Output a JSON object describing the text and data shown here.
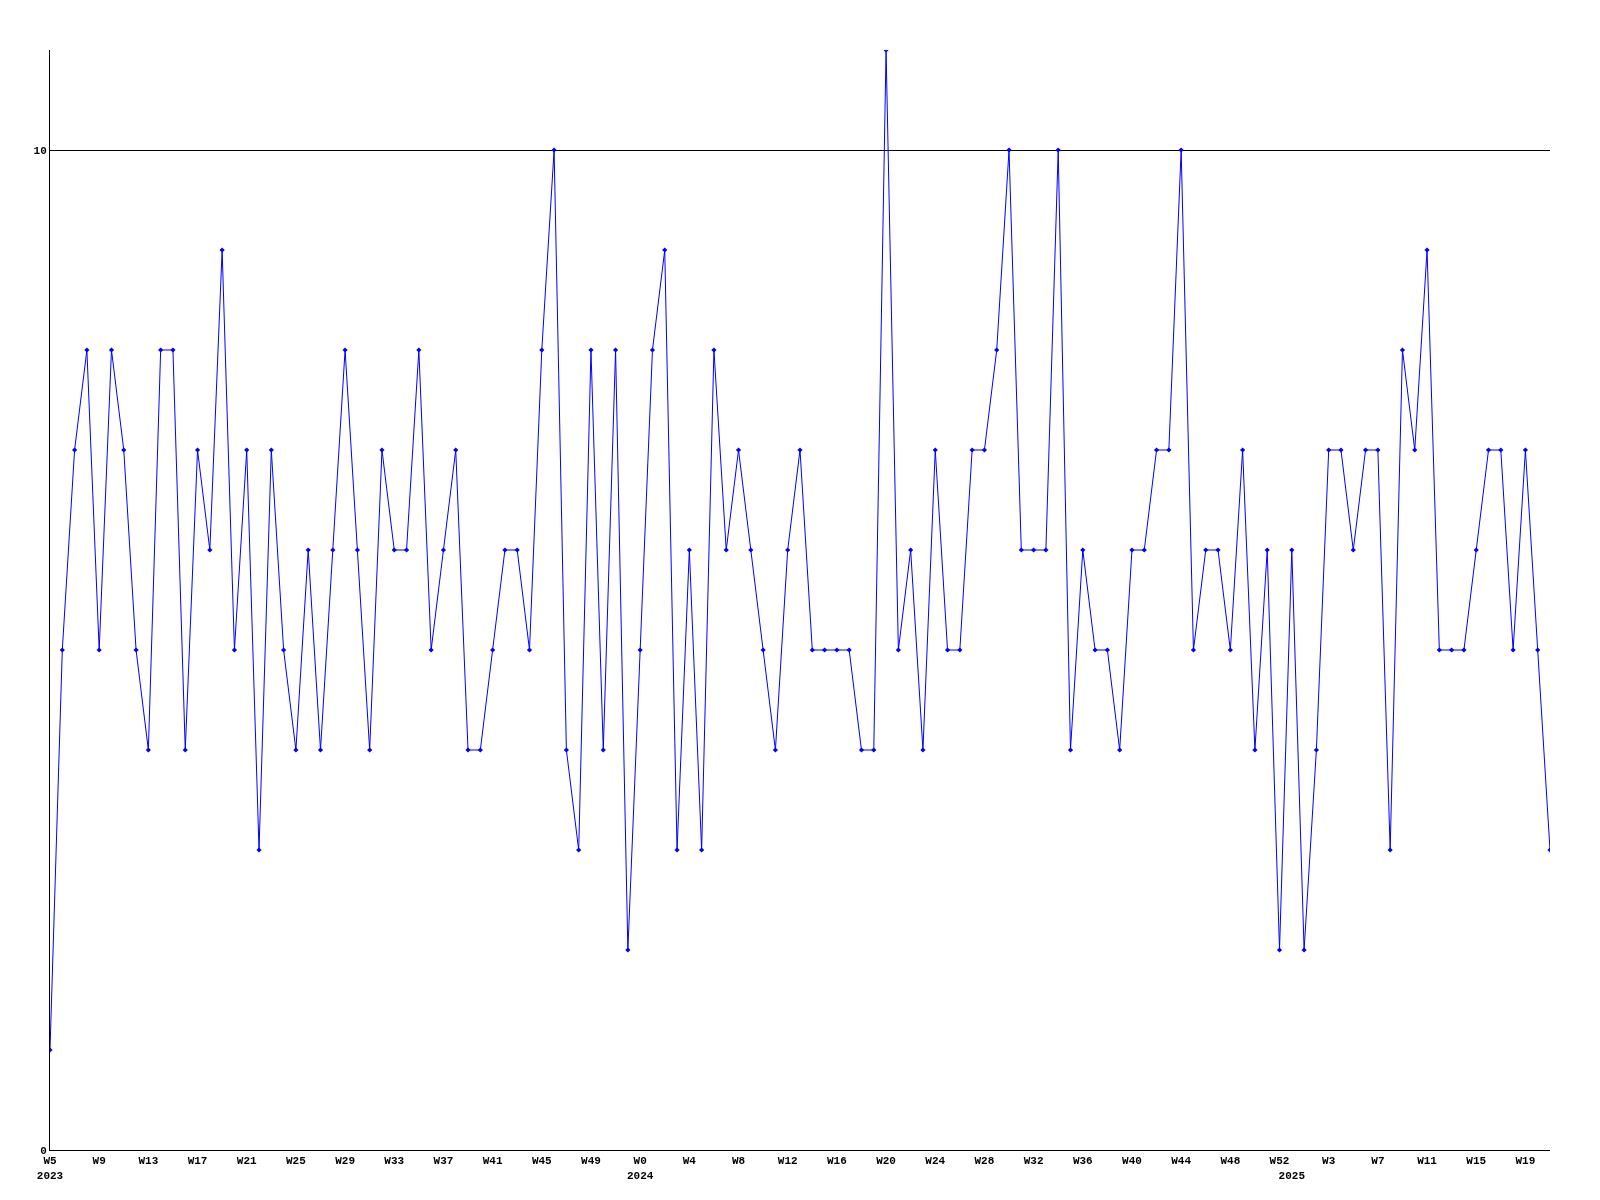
{
  "chart_data": {
    "type": "line",
    "categories": [
      "W5\n2023",
      null,
      null,
      null,
      "W9",
      null,
      null,
      null,
      "W13",
      null,
      null,
      null,
      "W17",
      null,
      null,
      null,
      "W21",
      null,
      null,
      null,
      "W25",
      null,
      null,
      null,
      "W29",
      null,
      null,
      null,
      "W33",
      null,
      null,
      null,
      "W37",
      null,
      null,
      null,
      "W41",
      null,
      null,
      null,
      "W45",
      null,
      null,
      null,
      "W49",
      null,
      null,
      null,
      "W0\n2024",
      null,
      null,
      null,
      "W4",
      null,
      null,
      null,
      "W8",
      null,
      null,
      null,
      "W12",
      null,
      null,
      null,
      "W16",
      null,
      null,
      null,
      "W20",
      null,
      null,
      null,
      "W24",
      null,
      null,
      null,
      "W28",
      null,
      null,
      null,
      "W32",
      null,
      null,
      null,
      "W36",
      null,
      null,
      null,
      "W40",
      null,
      null,
      null,
      "W44",
      null,
      null,
      null,
      "W48",
      null,
      null,
      null,
      "W52",
      "\n2025",
      null,
      null,
      "W3",
      null,
      null,
      null,
      "W7",
      null,
      null,
      null,
      "W11",
      null,
      null,
      null,
      "W15",
      null,
      null,
      null,
      "W19",
      null,
      null
    ],
    "series": [
      {
        "color": "#0000ff",
        "values": [
          1,
          5,
          7,
          8,
          5,
          8,
          7,
          5,
          4,
          8,
          8,
          4,
          7,
          6,
          9,
          5,
          7,
          3,
          7,
          5,
          4,
          6,
          4,
          6,
          8,
          6,
          4,
          7,
          6,
          6,
          8,
          5,
          6,
          7,
          4,
          4,
          5,
          6,
          6,
          5,
          8,
          10,
          4,
          3,
          8,
          4,
          8,
          2,
          5,
          8,
          9,
          3,
          6,
          3,
          8,
          6,
          7,
          6,
          5,
          4,
          6,
          7,
          5,
          5,
          5,
          5,
          4,
          4,
          11,
          5,
          6,
          4,
          7,
          5,
          5,
          7,
          7,
          8,
          10,
          6,
          6,
          6,
          10,
          4,
          6,
          5,
          5,
          4,
          6,
          6,
          7,
          7,
          10,
          5,
          6,
          6,
          5,
          7,
          4,
          6,
          2,
          6,
          2,
          4,
          7,
          7,
          6,
          7,
          7,
          3,
          8,
          7,
          9,
          5,
          5,
          5,
          6,
          7,
          7,
          5,
          7,
          5,
          3
        ]
      }
    ],
    "ylim": [
      0,
      11
    ],
    "yticks": [
      0,
      10
    ],
    "grid": "y",
    "marker": "diamond",
    "line_style": "solid"
  }
}
